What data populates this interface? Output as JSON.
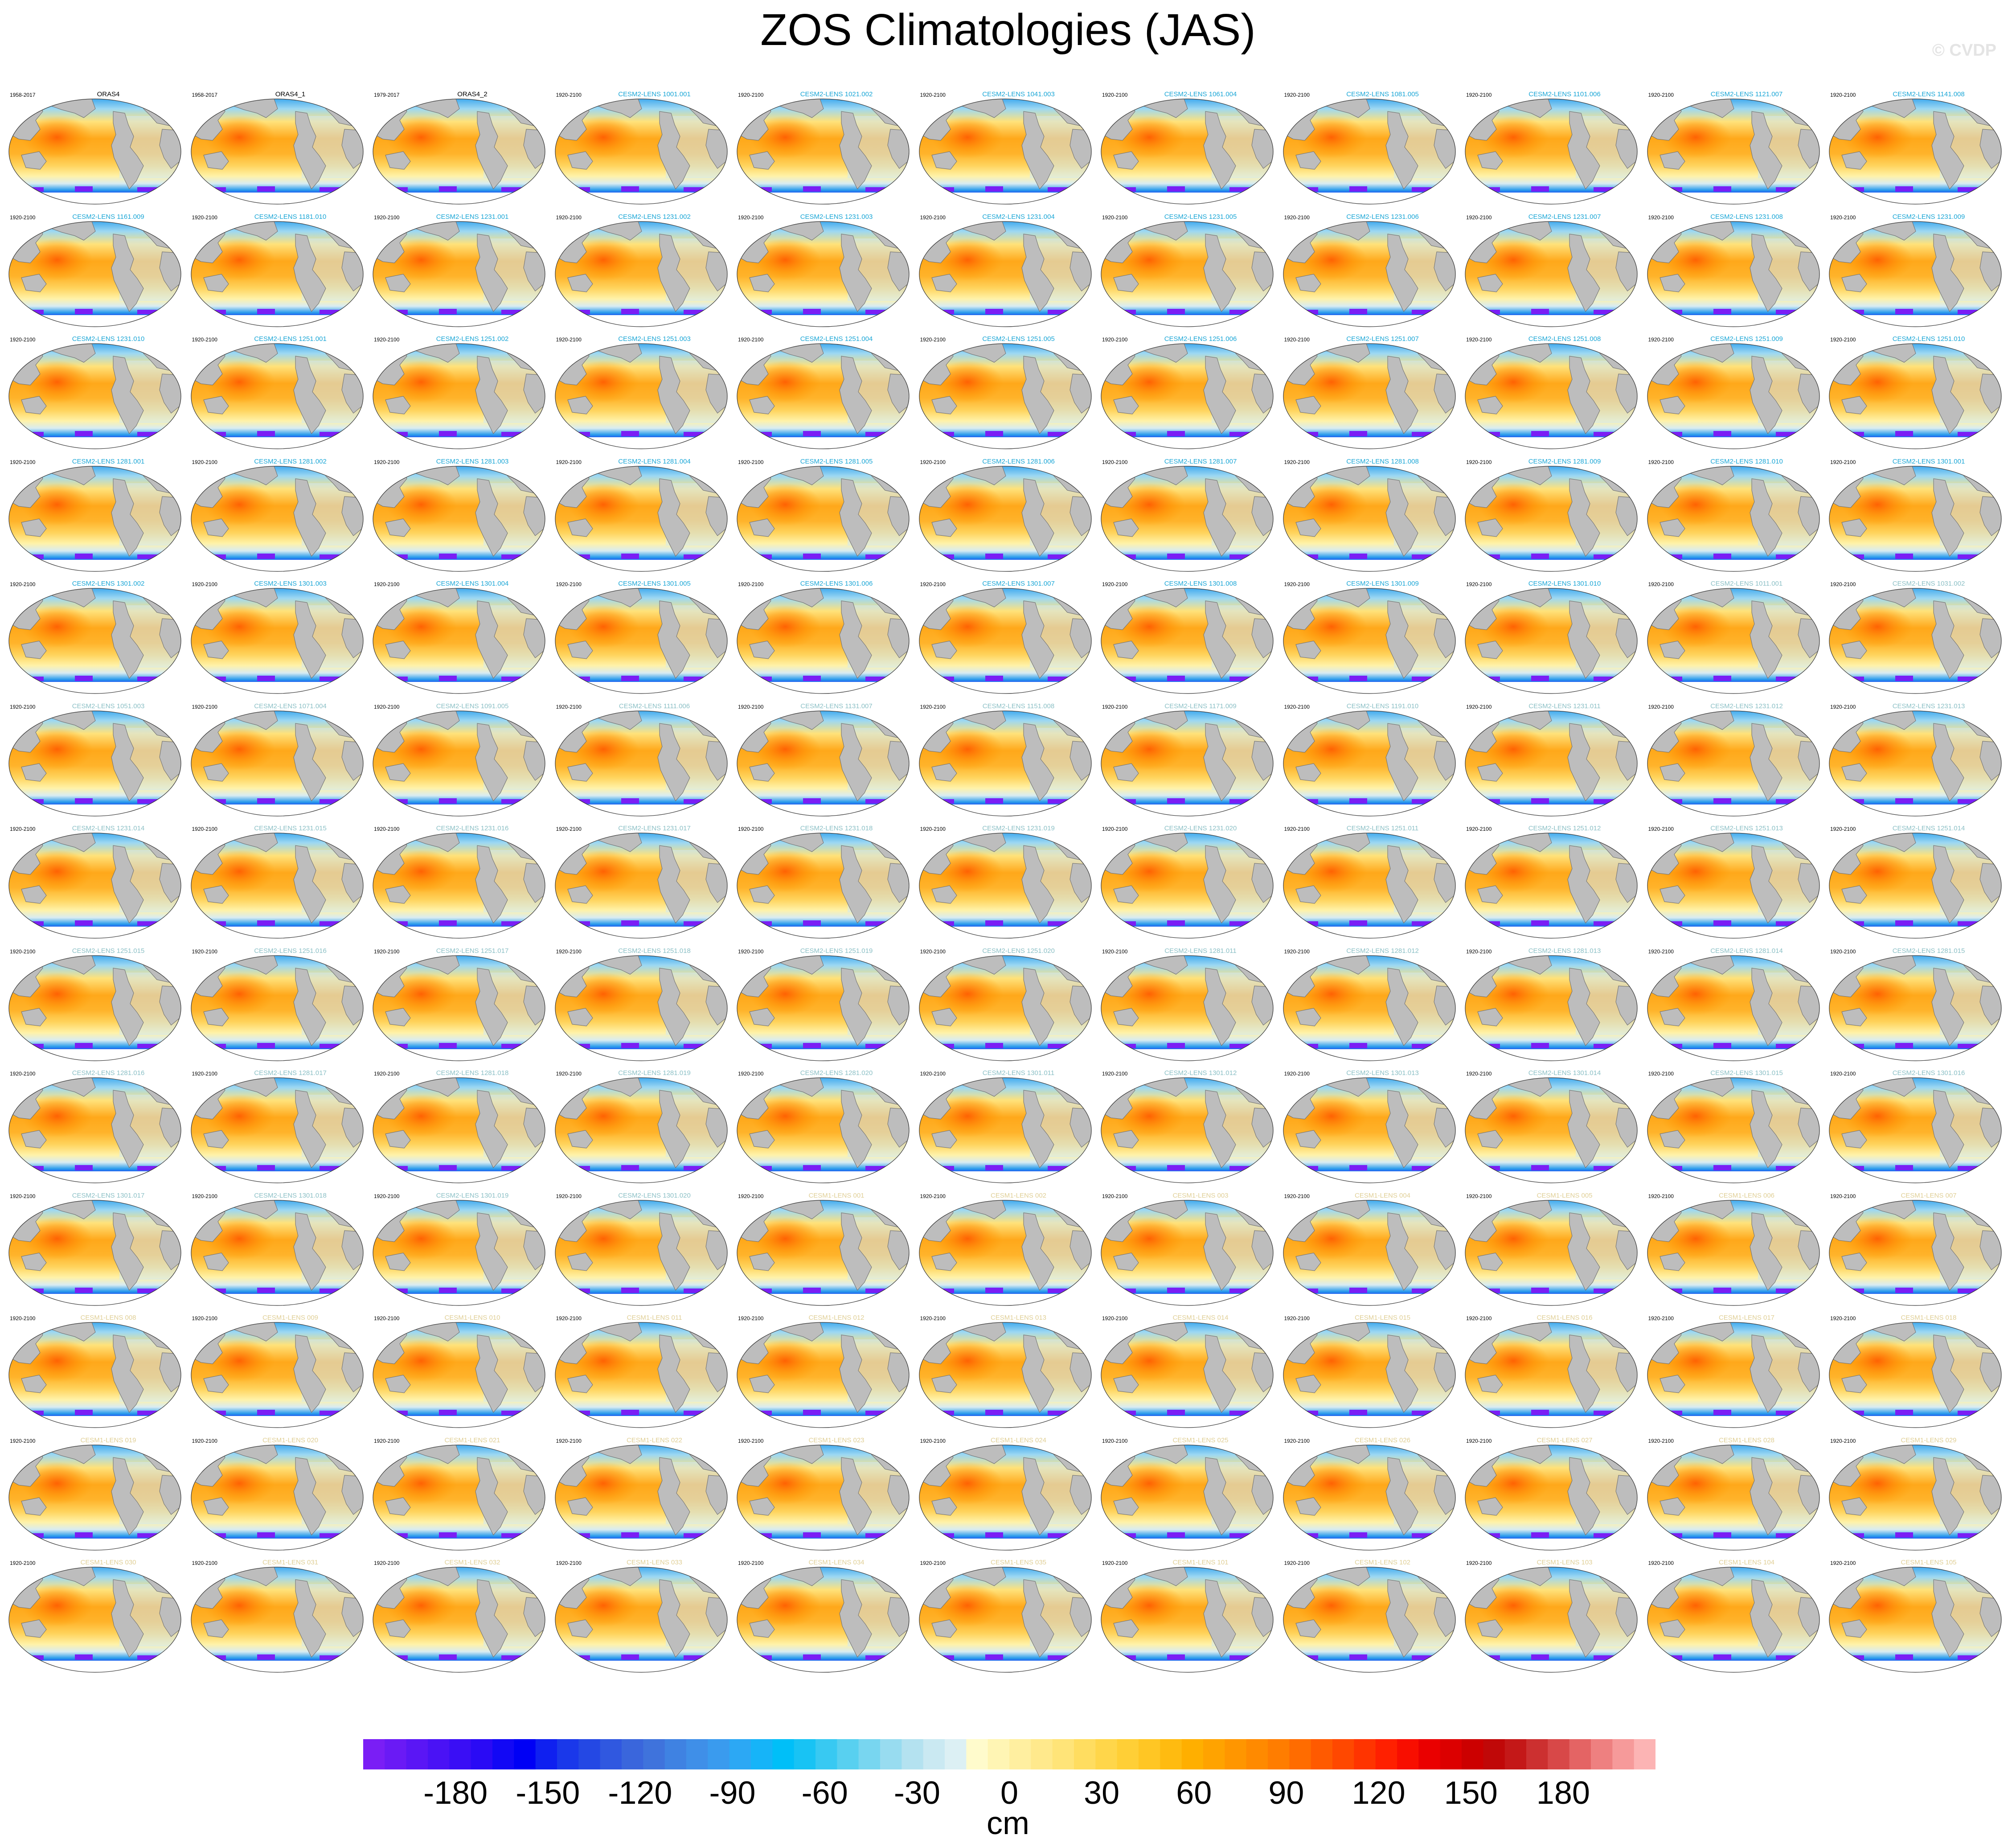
{
  "title": "ZOS Climatologies (JAS)",
  "watermark": "© CVDP",
  "colorbar": {
    "unit": "cm",
    "ticks": [
      "-180",
      "-150",
      "-120",
      "-90",
      "-60",
      "-30",
      "0",
      "30",
      "60",
      "90",
      "120",
      "150",
      "180"
    ],
    "tick_values": [
      -180,
      -150,
      -120,
      -90,
      -60,
      -30,
      0,
      30,
      60,
      90,
      120,
      150,
      180
    ],
    "range": [
      -210,
      210
    ],
    "colors": [
      "#7a1ef5",
      "#6a1af5",
      "#5a16f5",
      "#4a12f5",
      "#3a0ef5",
      "#2a0af5",
      "#1208f5",
      "#0000f5",
      "#0f20f0",
      "#1a38ea",
      "#2448e4",
      "#3058e0",
      "#3a66dc",
      "#3f73dc",
      "#3f82e2",
      "#3f8fe8",
      "#3a9bee",
      "#2ca8f4",
      "#16b4f8",
      "#00bff8",
      "#18c3f4",
      "#38c9f2",
      "#58d0f0",
      "#78d6f0",
      "#98dcf0",
      "#b4e2f0",
      "#cae9f2",
      "#dcf0f4",
      "#fffbcc",
      "#fff5b4",
      "#ffefa0",
      "#ffe98c",
      "#ffe478",
      "#ffdd60",
      "#ffd64a",
      "#ffcf36",
      "#ffc624",
      "#ffbb10",
      "#ffaf00",
      "#ffa300",
      "#ff9600",
      "#ff8a00",
      "#ff7d00",
      "#ff6c00",
      "#ff5a00",
      "#ff4800",
      "#ff3400",
      "#ff2000",
      "#f80e00",
      "#ea0000",
      "#dc0000",
      "#cc0000",
      "#c00808",
      "#c41818",
      "#cc3030",
      "#d84848",
      "#e46464",
      "#ee8080",
      "#f69a9a",
      "#fcb4b4"
    ]
  },
  "panels": [
    {
      "period": "1958-2017",
      "label": "ORAS4",
      "color": "#000000"
    },
    {
      "period": "1958-2017",
      "label": "ORAS4_1",
      "color": "#000000"
    },
    {
      "period": "1979-2017",
      "label": "ORAS4_2",
      "color": "#000000"
    },
    {
      "period": "1920-2100",
      "label": "CESM2-LENS 1001.001",
      "color": "#1aa6d6"
    },
    {
      "period": "1920-2100",
      "label": "CESM2-LENS 1021.002",
      "color": "#1aa6d6"
    },
    {
      "period": "1920-2100",
      "label": "CESM2-LENS 1041.003",
      "color": "#1aa6d6"
    },
    {
      "period": "1920-2100",
      "label": "CESM2-LENS 1061.004",
      "color": "#1aa6d6"
    },
    {
      "period": "1920-2100",
      "label": "CESM2-LENS 1081.005",
      "color": "#1aa6d6"
    },
    {
      "period": "1920-2100",
      "label": "CESM2-LENS 1101.006",
      "color": "#1aa6d6"
    },
    {
      "period": "1920-2100",
      "label": "CESM2-LENS 1121.007",
      "color": "#1aa6d6"
    },
    {
      "period": "1920-2100",
      "label": "CESM2-LENS 1141.008",
      "color": "#1aa6d6"
    },
    {
      "period": "1920-2100",
      "label": "CESM2-LENS 1161.009",
      "color": "#1aa6d6"
    },
    {
      "period": "1920-2100",
      "label": "CESM2-LENS 1181.010",
      "color": "#1aa6d6"
    },
    {
      "period": "1920-2100",
      "label": "CESM2-LENS 1231.001",
      "color": "#1aa6d6"
    },
    {
      "period": "1920-2100",
      "label": "CESM2-LENS 1231.002",
      "color": "#1aa6d6"
    },
    {
      "period": "1920-2100",
      "label": "CESM2-LENS 1231.003",
      "color": "#1aa6d6"
    },
    {
      "period": "1920-2100",
      "label": "CESM2-LENS 1231.004",
      "color": "#1aa6d6"
    },
    {
      "period": "1920-2100",
      "label": "CESM2-LENS 1231.005",
      "color": "#1aa6d6"
    },
    {
      "period": "1920-2100",
      "label": "CESM2-LENS 1231.006",
      "color": "#1aa6d6"
    },
    {
      "period": "1920-2100",
      "label": "CESM2-LENS 1231.007",
      "color": "#1aa6d6"
    },
    {
      "period": "1920-2100",
      "label": "CESM2-LENS 1231.008",
      "color": "#1aa6d6"
    },
    {
      "period": "1920-2100",
      "label": "CESM2-LENS 1231.009",
      "color": "#1aa6d6"
    },
    {
      "period": "1920-2100",
      "label": "CESM2-LENS 1231.010",
      "color": "#1aa6d6"
    },
    {
      "period": "1920-2100",
      "label": "CESM2-LENS 1251.001",
      "color": "#1aa6d6"
    },
    {
      "period": "1920-2100",
      "label": "CESM2-LENS 1251.002",
      "color": "#1aa6d6"
    },
    {
      "period": "1920-2100",
      "label": "CESM2-LENS 1251.003",
      "color": "#1aa6d6"
    },
    {
      "period": "1920-2100",
      "label": "CESM2-LENS 1251.004",
      "color": "#1aa6d6"
    },
    {
      "period": "1920-2100",
      "label": "CESM2-LENS 1251.005",
      "color": "#1aa6d6"
    },
    {
      "period": "1920-2100",
      "label": "CESM2-LENS 1251.006",
      "color": "#1aa6d6"
    },
    {
      "period": "1920-2100",
      "label": "CESM2-LENS 1251.007",
      "color": "#1aa6d6"
    },
    {
      "period": "1920-2100",
      "label": "CESM2-LENS 1251.008",
      "color": "#1aa6d6"
    },
    {
      "period": "1920-2100",
      "label": "CESM2-LENS 1251.009",
      "color": "#1aa6d6"
    },
    {
      "period": "1920-2100",
      "label": "CESM2-LENS 1251.010",
      "color": "#1aa6d6"
    },
    {
      "period": "1920-2100",
      "label": "CESM2-LENS 1281.001",
      "color": "#1aa6d6"
    },
    {
      "period": "1920-2100",
      "label": "CESM2-LENS 1281.002",
      "color": "#1aa6d6"
    },
    {
      "period": "1920-2100",
      "label": "CESM2-LENS 1281.003",
      "color": "#1aa6d6"
    },
    {
      "period": "1920-2100",
      "label": "CESM2-LENS 1281.004",
      "color": "#1aa6d6"
    },
    {
      "period": "1920-2100",
      "label": "CESM2-LENS 1281.005",
      "color": "#1aa6d6"
    },
    {
      "period": "1920-2100",
      "label": "CESM2-LENS 1281.006",
      "color": "#1aa6d6"
    },
    {
      "period": "1920-2100",
      "label": "CESM2-LENS 1281.007",
      "color": "#1aa6d6"
    },
    {
      "period": "1920-2100",
      "label": "CESM2-LENS 1281.008",
      "color": "#1aa6d6"
    },
    {
      "period": "1920-2100",
      "label": "CESM2-LENS 1281.009",
      "color": "#1aa6d6"
    },
    {
      "period": "1920-2100",
      "label": "CESM2-LENS 1281.010",
      "color": "#1aa6d6"
    },
    {
      "period": "1920-2100",
      "label": "CESM2-LENS 1301.001",
      "color": "#1aa6d6"
    },
    {
      "period": "1920-2100",
      "label": "CESM2-LENS 1301.002",
      "color": "#1aa6d6"
    },
    {
      "period": "1920-2100",
      "label": "CESM2-LENS 1301.003",
      "color": "#1aa6d6"
    },
    {
      "period": "1920-2100",
      "label": "CESM2-LENS 1301.004",
      "color": "#1aa6d6"
    },
    {
      "period": "1920-2100",
      "label": "CESM2-LENS 1301.005",
      "color": "#1aa6d6"
    },
    {
      "period": "1920-2100",
      "label": "CESM2-LENS 1301.006",
      "color": "#1aa6d6"
    },
    {
      "period": "1920-2100",
      "label": "CESM2-LENS 1301.007",
      "color": "#1aa6d6"
    },
    {
      "period": "1920-2100",
      "label": "CESM2-LENS 1301.008",
      "color": "#1aa6d6"
    },
    {
      "period": "1920-2100",
      "label": "CESM2-LENS 1301.009",
      "color": "#1aa6d6"
    },
    {
      "period": "1920-2100",
      "label": "CESM2-LENS 1301.010",
      "color": "#1aa6d6"
    },
    {
      "period": "1920-2100",
      "label": "CESM2-LENS 1011.001",
      "color": "#8cc0c6"
    },
    {
      "period": "1920-2100",
      "label": "CESM2-LENS 1031.002",
      "color": "#8cc0c6"
    },
    {
      "period": "1920-2100",
      "label": "CESM2-LENS 1051.003",
      "color": "#8cc0c6"
    },
    {
      "period": "1920-2100",
      "label": "CESM2-LENS 1071.004",
      "color": "#8cc0c6"
    },
    {
      "period": "1920-2100",
      "label": "CESM2-LENS 1091.005",
      "color": "#8cc0c6"
    },
    {
      "period": "1920-2100",
      "label": "CESM2-LENS 1111.006",
      "color": "#8cc0c6"
    },
    {
      "period": "1920-2100",
      "label": "CESM2-LENS 1131.007",
      "color": "#8cc0c6"
    },
    {
      "period": "1920-2100",
      "label": "CESM2-LENS 1151.008",
      "color": "#8cc0c6"
    },
    {
      "period": "1920-2100",
      "label": "CESM2-LENS 1171.009",
      "color": "#8cc0c6"
    },
    {
      "period": "1920-2100",
      "label": "CESM2-LENS 1191.010",
      "color": "#8cc0c6"
    },
    {
      "period": "1920-2100",
      "label": "CESM2-LENS 1231.011",
      "color": "#8cc0c6"
    },
    {
      "period": "1920-2100",
      "label": "CESM2-LENS 1231.012",
      "color": "#8cc0c6"
    },
    {
      "period": "1920-2100",
      "label": "CESM2-LENS 1231.013",
      "color": "#8cc0c6"
    },
    {
      "period": "1920-2100",
      "label": "CESM2-LENS 1231.014",
      "color": "#8cc0c6"
    },
    {
      "period": "1920-2100",
      "label": "CESM2-LENS 1231.015",
      "color": "#8cc0c6"
    },
    {
      "period": "1920-2100",
      "label": "CESM2-LENS 1231.016",
      "color": "#8cc0c6"
    },
    {
      "period": "1920-2100",
      "label": "CESM2-LENS 1231.017",
      "color": "#8cc0c6"
    },
    {
      "period": "1920-2100",
      "label": "CESM2-LENS 1231.018",
      "color": "#8cc0c6"
    },
    {
      "period": "1920-2100",
      "label": "CESM2-LENS 1231.019",
      "color": "#8cc0c6"
    },
    {
      "period": "1920-2100",
      "label": "CESM2-LENS 1231.020",
      "color": "#8cc0c6"
    },
    {
      "period": "1920-2100",
      "label": "CESM2-LENS 1251.011",
      "color": "#8cc0c6"
    },
    {
      "period": "1920-2100",
      "label": "CESM2-LENS 1251.012",
      "color": "#8cc0c6"
    },
    {
      "period": "1920-2100",
      "label": "CESM2-LENS 1251.013",
      "color": "#8cc0c6"
    },
    {
      "period": "1920-2100",
      "label": "CESM2-LENS 1251.014",
      "color": "#8cc0c6"
    },
    {
      "period": "1920-2100",
      "label": "CESM2-LENS 1251.015",
      "color": "#8cc0c6"
    },
    {
      "period": "1920-2100",
      "label": "CESM2-LENS 1251.016",
      "color": "#8cc0c6"
    },
    {
      "period": "1920-2100",
      "label": "CESM2-LENS 1251.017",
      "color": "#8cc0c6"
    },
    {
      "period": "1920-2100",
      "label": "CESM2-LENS 1251.018",
      "color": "#8cc0c6"
    },
    {
      "period": "1920-2100",
      "label": "CESM2-LENS 1251.019",
      "color": "#8cc0c6"
    },
    {
      "period": "1920-2100",
      "label": "CESM2-LENS 1251.020",
      "color": "#8cc0c6"
    },
    {
      "period": "1920-2100",
      "label": "CESM2-LENS 1281.011",
      "color": "#8cc0c6"
    },
    {
      "period": "1920-2100",
      "label": "CESM2-LENS 1281.012",
      "color": "#8cc0c6"
    },
    {
      "period": "1920-2100",
      "label": "CESM2-LENS 1281.013",
      "color": "#8cc0c6"
    },
    {
      "period": "1920-2100",
      "label": "CESM2-LENS 1281.014",
      "color": "#8cc0c6"
    },
    {
      "period": "1920-2100",
      "label": "CESM2-LENS 1281.015",
      "color": "#8cc0c6"
    },
    {
      "period": "1920-2100",
      "label": "CESM2-LENS 1281.016",
      "color": "#8cc0c6"
    },
    {
      "period": "1920-2100",
      "label": "CESM2-LENS 1281.017",
      "color": "#8cc0c6"
    },
    {
      "period": "1920-2100",
      "label": "CESM2-LENS 1281.018",
      "color": "#8cc0c6"
    },
    {
      "period": "1920-2100",
      "label": "CESM2-LENS 1281.019",
      "color": "#8cc0c6"
    },
    {
      "period": "1920-2100",
      "label": "CESM2-LENS 1281.020",
      "color": "#8cc0c6"
    },
    {
      "period": "1920-2100",
      "label": "CESM2-LENS 1301.011",
      "color": "#8cc0c6"
    },
    {
      "period": "1920-2100",
      "label": "CESM2-LENS 1301.012",
      "color": "#8cc0c6"
    },
    {
      "period": "1920-2100",
      "label": "CESM2-LENS 1301.013",
      "color": "#8cc0c6"
    },
    {
      "period": "1920-2100",
      "label": "CESM2-LENS 1301.014",
      "color": "#8cc0c6"
    },
    {
      "period": "1920-2100",
      "label": "CESM2-LENS 1301.015",
      "color": "#8cc0c6"
    },
    {
      "period": "1920-2100",
      "label": "CESM2-LENS 1301.016",
      "color": "#8cc0c6"
    },
    {
      "period": "1920-2100",
      "label": "CESM2-LENS 1301.017",
      "color": "#8cc0c6"
    },
    {
      "period": "1920-2100",
      "label": "CESM2-LENS 1301.018",
      "color": "#8cc0c6"
    },
    {
      "period": "1920-2100",
      "label": "CESM2-LENS 1301.019",
      "color": "#8cc0c6"
    },
    {
      "period": "1920-2100",
      "label": "CESM2-LENS 1301.020",
      "color": "#8cc0c6"
    },
    {
      "period": "1920-2100",
      "label": "CESM1-LENS 001",
      "color": "#e0cf96"
    },
    {
      "period": "1920-2100",
      "label": "CESM1-LENS 002",
      "color": "#e0cf96"
    },
    {
      "period": "1920-2100",
      "label": "CESM1-LENS 003",
      "color": "#e0cf96"
    },
    {
      "period": "1920-2100",
      "label": "CESM1-LENS 004",
      "color": "#e0cf96"
    },
    {
      "period": "1920-2100",
      "label": "CESM1-LENS 005",
      "color": "#e0cf96"
    },
    {
      "period": "1920-2100",
      "label": "CESM1-LENS 006",
      "color": "#e0cf96"
    },
    {
      "period": "1920-2100",
      "label": "CESM1-LENS 007",
      "color": "#e0cf96"
    },
    {
      "period": "1920-2100",
      "label": "CESM1-LENS 008",
      "color": "#e0cf96"
    },
    {
      "period": "1920-2100",
      "label": "CESM1-LENS 009",
      "color": "#e0cf96"
    },
    {
      "period": "1920-2100",
      "label": "CESM1-LENS 010",
      "color": "#e0cf96"
    },
    {
      "period": "1920-2100",
      "label": "CESM1-LENS 011",
      "color": "#e0cf96"
    },
    {
      "period": "1920-2100",
      "label": "CESM1-LENS 012",
      "color": "#e0cf96"
    },
    {
      "period": "1920-2100",
      "label": "CESM1-LENS 013",
      "color": "#e0cf96"
    },
    {
      "period": "1920-2100",
      "label": "CESM1-LENS 014",
      "color": "#e0cf96"
    },
    {
      "period": "1920-2100",
      "label": "CESM1-LENS 015",
      "color": "#e0cf96"
    },
    {
      "period": "1920-2100",
      "label": "CESM1-LENS 016",
      "color": "#e0cf96"
    },
    {
      "period": "1920-2100",
      "label": "CESM1-LENS 017",
      "color": "#e0cf96"
    },
    {
      "period": "1920-2100",
      "label": "CESM1-LENS 018",
      "color": "#e0cf96"
    },
    {
      "period": "1920-2100",
      "label": "CESM1-LENS 019",
      "color": "#e0cf96"
    },
    {
      "period": "1920-2100",
      "label": "CESM1-LENS 020",
      "color": "#e0cf96"
    },
    {
      "period": "1920-2100",
      "label": "CESM1-LENS 021",
      "color": "#e0cf96"
    },
    {
      "period": "1920-2100",
      "label": "CESM1-LENS 022",
      "color": "#e0cf96"
    },
    {
      "period": "1920-2100",
      "label": "CESM1-LENS 023",
      "color": "#e0cf96"
    },
    {
      "period": "1920-2100",
      "label": "CESM1-LENS 024",
      "color": "#e0cf96"
    },
    {
      "period": "1920-2100",
      "label": "CESM1-LENS 025",
      "color": "#e0cf96"
    },
    {
      "period": "1920-2100",
      "label": "CESM1-LENS 026",
      "color": "#e0cf96"
    },
    {
      "period": "1920-2100",
      "label": "CESM1-LENS 027",
      "color": "#e0cf96"
    },
    {
      "period": "1920-2100",
      "label": "CESM1-LENS 028",
      "color": "#e0cf96"
    },
    {
      "period": "1920-2100",
      "label": "CESM1-LENS 029",
      "color": "#e0cf96"
    },
    {
      "period": "1920-2100",
      "label": "CESM1-LENS 030",
      "color": "#e0cf96"
    },
    {
      "period": "1920-2100",
      "label": "CESM1-LENS 031",
      "color": "#e0cf96"
    },
    {
      "period": "1920-2100",
      "label": "CESM1-LENS 032",
      "color": "#e0cf96"
    },
    {
      "period": "1920-2100",
      "label": "CESM1-LENS 033",
      "color": "#e0cf96"
    },
    {
      "period": "1920-2100",
      "label": "CESM1-LENS 034",
      "color": "#e0cf96"
    },
    {
      "period": "1920-2100",
      "label": "CESM1-LENS 035",
      "color": "#e0cf96"
    },
    {
      "period": "1920-2100",
      "label": "CESM1-LENS 101",
      "color": "#e0cf96"
    },
    {
      "period": "1920-2100",
      "label": "CESM1-LENS 102",
      "color": "#e0cf96"
    },
    {
      "period": "1920-2100",
      "label": "CESM1-LENS 103",
      "color": "#e0cf96"
    },
    {
      "period": "1920-2100",
      "label": "CESM1-LENS 104",
      "color": "#e0cf96"
    },
    {
      "period": "1920-2100",
      "label": "CESM1-LENS 105",
      "color": "#e0cf96"
    }
  ]
}
